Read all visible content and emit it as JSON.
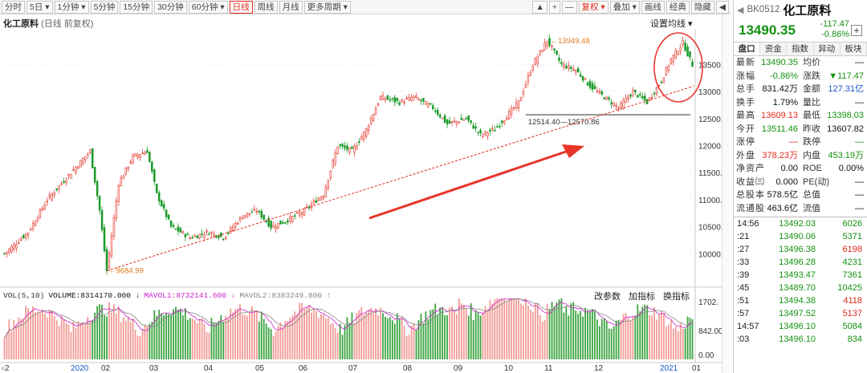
{
  "toolbar": {
    "tabs": [
      {
        "label": "分时"
      },
      {
        "label": "5日 ▾"
      },
      {
        "label": "1分钟 ▾"
      },
      {
        "label": "5分钟"
      },
      {
        "label": "15分钟"
      },
      {
        "label": "30分钟"
      },
      {
        "label": "60分钟 ▾"
      },
      {
        "label": "日线"
      },
      {
        "label": "周线"
      },
      {
        "label": "月线"
      },
      {
        "label": "更多周期 ▾"
      }
    ],
    "active_tab": 7,
    "tools": [
      {
        "label": "▲"
      },
      {
        "label": "+"
      },
      {
        "label": "—"
      },
      {
        "label": "复权 ▾"
      },
      {
        "label": "叠加 ▾"
      },
      {
        "label": "画线"
      },
      {
        "label": "经典"
      },
      {
        "label": "隐藏"
      },
      {
        "label": "◀"
      }
    ]
  },
  "chart_header": {
    "title": "化工原料",
    "subtitle": "(日线 前复权)",
    "ma_setting": "设置均线 ▾"
  },
  "annotations": {
    "high_label": "13949.48",
    "low_label": "9684.99",
    "support_label": "12514.40—12570.86"
  },
  "volume": {
    "legend": [
      {
        "text": "VOL(5,10)",
        "color": "#333333"
      },
      {
        "text": "VOLUME:8314170.000 ↓",
        "color": "#111111"
      },
      {
        "text": "MAVOL1:8732141.600 ↓",
        "color": "#cc22cc"
      },
      {
        "text": "MAVOL2:8383249.800 ↑",
        "color": "#888888"
      }
    ],
    "buttons": [
      "改参数",
      "加指标",
      "换指标"
    ],
    "axis_labels": [
      "1702.",
      "842.00",
      "0.00"
    ]
  },
  "chart_data": {
    "type": "candlestick",
    "title": "化工原料",
    "ylim": [
      9500,
      14100
    ],
    "yticks": [
      10000,
      10500,
      11000,
      11500,
      12000,
      12500,
      13000,
      13500
    ],
    "xticks": [
      "2",
      "2020",
      "02",
      "03",
      "04",
      "05",
      "06",
      "07",
      "08",
      "09",
      "10",
      "11",
      "12",
      "2021",
      "01"
    ],
    "anchors": [
      [
        0,
        10000
      ],
      [
        10,
        10400
      ],
      [
        18,
        11000
      ],
      [
        22,
        11200
      ],
      [
        30,
        11600
      ],
      [
        36,
        11900
      ],
      [
        40,
        10800
      ],
      [
        43,
        9685
      ],
      [
        48,
        11300
      ],
      [
        54,
        11800
      ],
      [
        60,
        11900
      ],
      [
        64,
        11100
      ],
      [
        70,
        10500
      ],
      [
        78,
        10300
      ],
      [
        86,
        10400
      ],
      [
        92,
        10300
      ],
      [
        100,
        10700
      ],
      [
        106,
        10800
      ],
      [
        112,
        10500
      ],
      [
        118,
        10600
      ],
      [
        126,
        10800
      ],
      [
        134,
        11100
      ],
      [
        140,
        12000
      ],
      [
        146,
        11900
      ],
      [
        152,
        12300
      ],
      [
        158,
        12900
      ],
      [
        166,
        12800
      ],
      [
        172,
        12900
      ],
      [
        180,
        12700
      ],
      [
        186,
        12400
      ],
      [
        194,
        12500
      ],
      [
        200,
        12200
      ],
      [
        206,
        12300
      ],
      [
        212,
        12600
      ],
      [
        216,
        12800
      ],
      [
        222,
        13500
      ],
      [
        228,
        13949
      ],
      [
        234,
        13500
      ],
      [
        240,
        13400
      ],
      [
        246,
        13100
      ],
      [
        252,
        12900
      ],
      [
        258,
        12700
      ],
      [
        264,
        13000
      ],
      [
        270,
        12800
      ],
      [
        276,
        13200
      ],
      [
        280,
        13600
      ],
      [
        285,
        13900
      ],
      [
        289,
        13490
      ]
    ],
    "high": 13949.48,
    "low": 9684.99,
    "support": [
      12514.4,
      12570.86
    ],
    "last": 13490.35,
    "colors": {
      "up": "#e8463c",
      "down": "#1a9a28",
      "ma1": "#cc22cc",
      "ma2": "#888888",
      "trend": "#e02a1a",
      "support": "#9a9a9a"
    }
  },
  "quote": {
    "code": "BK0512",
    "name": "化工原料",
    "price": "13490.35",
    "change": "-117.47",
    "change_pct": "-0.86%",
    "tabs": [
      "盘口",
      "资金",
      "指数",
      "异动",
      "板块"
    ],
    "rows": [
      {
        "k": "最新",
        "v": "13490.35",
        "vc": "green",
        "k2": "均价",
        "v2": "—",
        "v2c": "dark"
      },
      {
        "k": "涨幅",
        "v": "-0.86%",
        "vc": "green",
        "k2": "涨跌",
        "v2": "▼117.47",
        "v2c": "green"
      },
      {
        "k": "总手",
        "v": "831.42万",
        "vc": "dark",
        "k2": "金额",
        "v2": "127.31亿",
        "v2c": "blue"
      },
      {
        "k": "换手",
        "v": "1.79%",
        "vc": "dark",
        "k2": "量比",
        "v2": "—",
        "v2c": "dark"
      },
      {
        "k": "最高",
        "v": "13609.13",
        "vc": "red",
        "k2": "最低",
        "v2": "13398.03",
        "v2c": "green"
      },
      {
        "k": "今开",
        "v": "13511.46",
        "vc": "green",
        "k2": "昨收",
        "v2": "13607.82",
        "v2c": "dark"
      },
      {
        "k": "涨停",
        "v": "—",
        "vc": "red",
        "k2": "跌停",
        "v2": "—",
        "v2c": "green"
      },
      {
        "k": "外盘",
        "v": "378.23万",
        "vc": "red",
        "k2": "内盘",
        "v2": "453.19万",
        "v2c": "green"
      },
      {
        "k": "净资产",
        "v": "0.00",
        "vc": "dark",
        "k2": "ROE",
        "v2": "0.00%",
        "v2c": "dark"
      },
      {
        "k": "收益㈢",
        "v": "0.000",
        "vc": "dark",
        "k2": "PE(动)",
        "v2": "—",
        "v2c": "dark"
      },
      {
        "k": "总股本",
        "v": "578.5亿",
        "vc": "dark",
        "k2": "总值",
        "v2": "—",
        "v2c": "dark"
      },
      {
        "k": "流通股",
        "v": "463.6亿",
        "vc": "dark",
        "k2": "流值",
        "v2": "—",
        "v2c": "dark"
      }
    ],
    "ticks": [
      {
        "t": "14:56",
        "p": "13492.03",
        "q": "6026",
        "qc": "green"
      },
      {
        "t": ":21",
        "p": "13490.06",
        "q": "5371",
        "qc": "green"
      },
      {
        "t": ":27",
        "p": "13496.38",
        "q": "6198",
        "qc": "red"
      },
      {
        "t": ":33",
        "p": "13496.28",
        "q": "4231",
        "qc": "green"
      },
      {
        "t": ":39",
        "p": "13493.47",
        "q": "7361",
        "qc": "green"
      },
      {
        "t": ":45",
        "p": "13489.70",
        "q": "10425",
        "qc": "green"
      },
      {
        "t": ":51",
        "p": "13494.38",
        "q": "4118",
        "qc": "red"
      },
      {
        "t": ":57",
        "p": "13497.52",
        "q": "5137",
        "qc": "red"
      },
      {
        "t": "14:57",
        "p": "13496.10",
        "q": "5084",
        "qc": "green"
      },
      {
        "t": ":03",
        "p": "13496.10",
        "q": "834",
        "qc": "green"
      }
    ]
  }
}
